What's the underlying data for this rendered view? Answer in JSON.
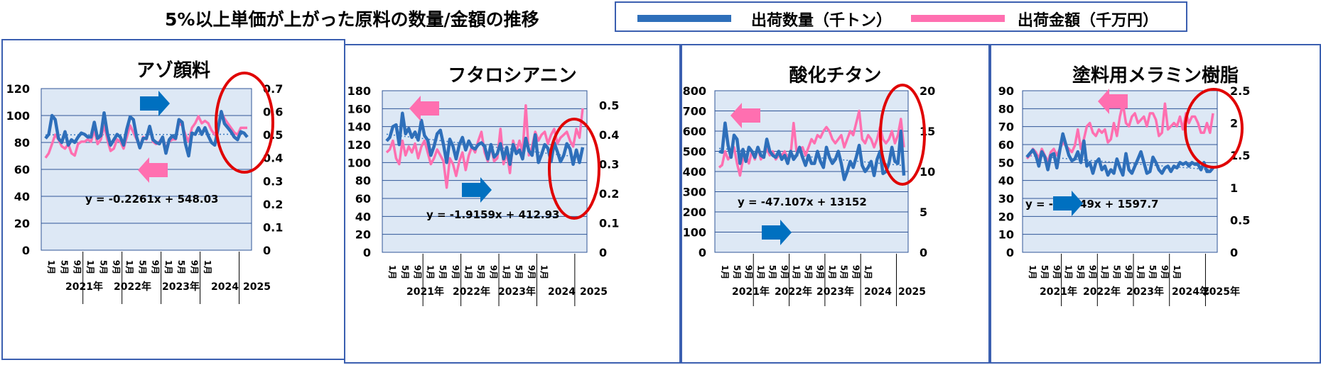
{
  "title": "5%以上単価が上がった原料の数量/金額の推移",
  "legend": [
    {
      "label": "出荷数量（千トン）",
      "color": "#2e6fba"
    },
    {
      "label": "出荷金額（千万円）",
      "color": "#ff6fb0"
    }
  ],
  "colors": {
    "quantity": "#2e6fba",
    "amount": "#ff6fb0",
    "plot_bg": "#dde8f5",
    "grid": "#2f5597",
    "trend": "#3a7ac0",
    "highlight": "#e00000"
  },
  "chart_data": [
    {
      "type": "line",
      "title": "アゾ顔料",
      "trendline_label": "y = -0.2261x + 548.03",
      "left_axis": {
        "ticks": [
          "0",
          "20",
          "40",
          "60",
          "80",
          "100",
          "120"
        ],
        "min": 0,
        "max": 120
      },
      "right_axis": {
        "ticks": [
          "0",
          "0.1",
          "0.2",
          "0.3",
          "0.4",
          "0.5",
          "0.6",
          "0.7"
        ],
        "min": 0,
        "max": 0.7
      },
      "month_ticks": [
        "1月",
        "5月",
        "9月",
        "1月",
        "5月",
        "9月",
        "1月",
        "5月",
        "9月",
        "1月",
        "5月",
        "9月",
        "1月"
      ],
      "year_labels": [
        "2021年",
        "2022年",
        "2023年",
        "2024",
        "2025"
      ],
      "arrows": [
        {
          "direction": "right",
          "color": "blue"
        },
        {
          "direction": "left",
          "color": "pink"
        }
      ],
      "series": [
        {
          "name": "出荷数量（千トン）",
          "axis": "left",
          "values": [
            83,
            86,
            100,
            97,
            83,
            80,
            88,
            78,
            82,
            80,
            84,
            87,
            86,
            84,
            84,
            95,
            83,
            85,
            102,
            87,
            78,
            82,
            86,
            84,
            78,
            90,
            99,
            97,
            84,
            76,
            83,
            83,
            92,
            82,
            80,
            79,
            84,
            72,
            82,
            85,
            83,
            97,
            95,
            79,
            70,
            87,
            86,
            91,
            86,
            91,
            85,
            80,
            78,
            90,
            103,
            94,
            91,
            88,
            84,
            82,
            88,
            87,
            84
          ]
        },
        {
          "name": "出荷金額（千万円）",
          "axis": "right",
          "values": [
            0.4,
            0.42,
            0.46,
            0.5,
            0.48,
            0.45,
            0.44,
            0.46,
            0.42,
            0.41,
            0.46,
            0.47,
            0.47,
            0.48,
            0.47,
            0.52,
            0.46,
            0.48,
            0.54,
            0.48,
            0.43,
            0.44,
            0.48,
            0.47,
            0.44,
            0.49,
            0.54,
            0.51,
            0.48,
            0.45,
            0.49,
            0.48,
            0.53,
            0.47,
            0.46,
            0.47,
            0.49,
            0.44,
            0.47,
            0.48,
            0.48,
            0.55,
            0.54,
            0.5,
            0.47,
            0.53,
            0.55,
            0.58,
            0.55,
            0.56,
            0.55,
            0.52,
            0.5,
            0.53,
            0.6,
            0.57,
            0.55,
            0.53,
            0.51,
            0.5,
            0.53,
            0.53,
            0.53
          ]
        }
      ]
    },
    {
      "type": "line",
      "title": "フタロシアニン",
      "trendline_label": "y = -1.9159x + 412.93",
      "left_axis": {
        "ticks": [
          "0",
          "20",
          "40",
          "60",
          "80",
          "100",
          "120",
          "140",
          "160",
          "180"
        ],
        "min": 0,
        "max": 180
      },
      "right_axis": {
        "ticks": [
          "0",
          "0.1",
          "0.2",
          "0.3",
          "0.4",
          "0.5"
        ],
        "min": 0,
        "max": 0.55
      },
      "month_ticks": [
        "1月",
        "5月",
        "9月",
        "1月",
        "5月",
        "9月",
        "1月",
        "5月",
        "9月",
        "1月",
        "5月",
        "9月",
        "1月"
      ],
      "year_labels": [
        "2021年",
        "2022年",
        "2023年",
        "2024",
        "2025"
      ],
      "arrows": [
        {
          "direction": "left",
          "color": "pink"
        },
        {
          "direction": "right",
          "color": "blue"
        }
      ],
      "series": [
        {
          "name": "出荷数量（千トン）",
          "axis": "left",
          "values": [
            124,
            128,
            140,
            142,
            120,
            155,
            132,
            138,
            128,
            134,
            125,
            147,
            130,
            125,
            108,
            118,
            132,
            136,
            120,
            100,
            126,
            118,
            104,
            120,
            128,
            114,
            124,
            117,
            115,
            120,
            122,
            118,
            104,
            120,
            106,
            110,
            121,
            104,
            117,
            98,
            120,
            110,
            114,
            104,
            127,
            113,
            108,
            131,
            100,
            109,
            120,
            116,
            101,
            122,
            112,
            101,
            108,
            121,
            115,
            98,
            114,
            100,
            117
          ]
        },
        {
          "name": "出荷金額（千万円）",
          "axis": "right",
          "values": [
            0.34,
            0.35,
            0.38,
            0.32,
            0.3,
            0.38,
            0.33,
            0.36,
            0.34,
            0.37,
            0.32,
            0.36,
            0.38,
            0.34,
            0.3,
            0.32,
            0.35,
            0.33,
            0.31,
            0.22,
            0.32,
            0.3,
            0.26,
            0.31,
            0.34,
            0.28,
            0.33,
            0.36,
            0.34,
            0.38,
            0.41,
            0.34,
            0.31,
            0.36,
            0.31,
            0.32,
            0.42,
            0.3,
            0.34,
            0.27,
            0.38,
            0.34,
            0.38,
            0.34,
            0.5,
            0.33,
            0.36,
            0.41,
            0.38,
            0.4,
            0.41,
            0.37,
            0.4,
            0.42,
            0.37,
            0.39,
            0.4,
            0.41,
            0.38,
            0.36,
            0.42,
            0.39,
            0.49
          ]
        }
      ]
    },
    {
      "type": "line",
      "title": "酸化チタン",
      "trendline_label": "y = -47.107x + 13152",
      "left_axis": {
        "ticks": [
          "0",
          "100",
          "200",
          "300",
          "400",
          "500",
          "600",
          "700",
          "800"
        ],
        "min": 0,
        "max": 800
      },
      "right_axis": {
        "ticks": [
          "0",
          "5",
          "10",
          "15",
          "20"
        ],
        "min": 0,
        "max": 20
      },
      "month_ticks": [
        "1月",
        "5月",
        "9月",
        "1月",
        "5月",
        "9月",
        "1月",
        "5月",
        "9月",
        "1月",
        "5月",
        "9月",
        "1月"
      ],
      "year_labels": [
        "2021年",
        "2022年",
        "2023年",
        "2024",
        "2025"
      ],
      "arrows": [
        {
          "direction": "left",
          "color": "pink"
        },
        {
          "direction": "right",
          "color": "blue"
        }
      ],
      "series": [
        {
          "name": "出荷数量（千トン）",
          "axis": "left",
          "values": [
            500,
            495,
            640,
            530,
            470,
            580,
            560,
            440,
            510,
            450,
            520,
            500,
            470,
            520,
            480,
            470,
            560,
            500,
            480,
            470,
            500,
            460,
            480,
            440,
            500,
            460,
            480,
            520,
            470,
            430,
            480,
            440,
            440,
            500,
            450,
            420,
            520,
            470,
            440,
            460,
            500,
            440,
            360,
            400,
            450,
            420,
            470,
            530,
            430,
            400,
            420,
            450,
            380,
            460,
            500,
            390,
            400,
            440,
            520,
            450,
            440,
            600,
            380
          ]
        },
        {
          "name": "出荷金額（千万円）",
          "axis": "right",
          "values": [
            10.5,
            10.8,
            12.5,
            11.5,
            12.0,
            13.0,
            11.0,
            9.5,
            11.5,
            12.0,
            11.0,
            12.5,
            11.5,
            13.0,
            11.5,
            12.0,
            12.8,
            12.0,
            12.5,
            11.5,
            12.0,
            12.0,
            12.5,
            11.5,
            12.0,
            16.0,
            12.5,
            12.8,
            13.0,
            12.0,
            13.0,
            14.0,
            13.5,
            14.5,
            14.2,
            15.0,
            15.5,
            15.0,
            14.0,
            13.5,
            14.0,
            14.5,
            13.0,
            14.0,
            15.0,
            14.5,
            16.0,
            17.5,
            14.0,
            13.5,
            14.5,
            14.0,
            13.0,
            14.0,
            15.5,
            14.0,
            13.5,
            14.0,
            15.0,
            13.5,
            14.5,
            16.5,
            13.0
          ]
        }
      ]
    },
    {
      "type": "line",
      "title": "塗料用メラミン樹脂",
      "trendline_label": "y = -5.0149x + 1597.7",
      "left_axis": {
        "ticks": [
          "0",
          "10",
          "20",
          "30",
          "40",
          "50",
          "60",
          "70",
          "80",
          "90"
        ],
        "min": 0,
        "max": 90
      },
      "right_axis": {
        "ticks": [
          "0",
          "0.5",
          "1",
          "1.5",
          "2",
          "2.5"
        ],
        "min": 0,
        "max": 2.5
      },
      "month_ticks": [
        "1月",
        "5月",
        "9月",
        "1月",
        "5月",
        "9月",
        "1月",
        "5月",
        "9月",
        "1月",
        "5月",
        "9月",
        "1月"
      ],
      "year_labels": [
        "2021年",
        "2022年",
        "2023年",
        "2024年",
        "2025年"
      ],
      "arrows": [
        {
          "direction": "left",
          "color": "pink"
        },
        {
          "direction": "right",
          "color": "blue"
        }
      ],
      "series": [
        {
          "name": "出荷数量（千トン）",
          "axis": "left",
          "values": [
            53,
            55,
            57,
            54,
            48,
            56,
            53,
            46,
            54,
            55,
            47,
            57,
            66,
            60,
            54,
            51,
            52,
            56,
            50,
            62,
            48,
            50,
            44,
            50,
            52,
            46,
            48,
            43,
            46,
            44,
            52,
            47,
            43,
            55,
            46,
            44,
            48,
            52,
            56,
            50,
            44,
            45,
            53,
            50,
            46,
            44,
            47,
            48,
            45,
            48,
            47,
            50,
            49,
            50,
            48,
            50,
            49,
            49,
            46,
            50,
            45,
            45,
            47
          ]
        },
        {
          "name": "出荷金額（千万円）",
          "axis": "right",
          "values": [
            1.45,
            1.5,
            1.6,
            1.55,
            1.45,
            1.6,
            1.5,
            1.4,
            1.55,
            1.6,
            1.5,
            1.6,
            1.7,
            1.65,
            1.6,
            1.55,
            1.65,
            1.9,
            1.6,
            1.75,
            1.95,
            2.0,
            1.85,
            1.8,
            1.9,
            1.85,
            1.9,
            1.7,
            1.75,
            2.0,
            1.8,
            2.1,
            2.3,
            2.0,
            1.95,
            2.1,
            2.15,
            2.0,
            2.05,
            2.1,
            1.95,
            2.15,
            2.15,
            2.05,
            1.8,
            1.85,
            2.3,
            1.9,
            1.95,
            2.0,
            1.95,
            2.1,
            1.9,
            2.15,
            2.0,
            2.1,
            2.1,
            2.0,
            1.85,
            1.85,
            2.0,
            1.85,
            2.15
          ]
        }
      ]
    }
  ]
}
